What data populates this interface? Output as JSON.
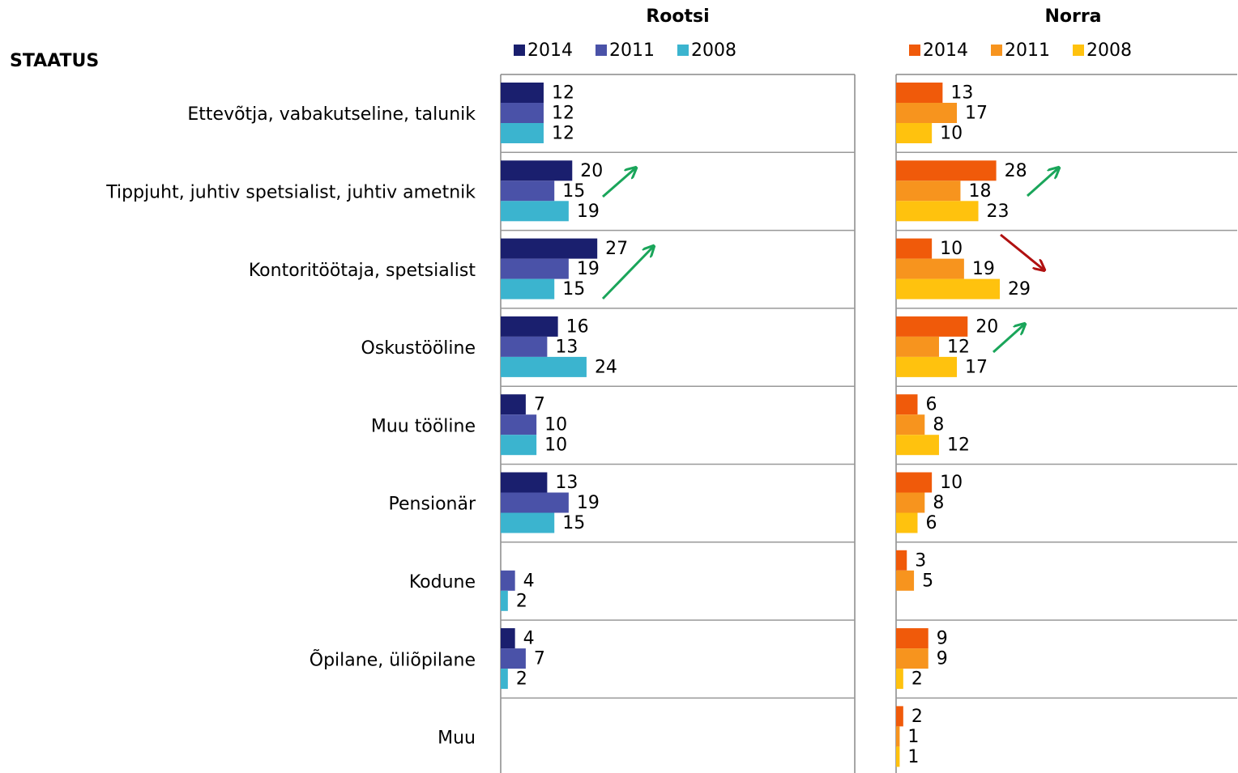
{
  "heading": "STAATUS",
  "chart_data": [
    {
      "type": "hbar",
      "title": "Rootsi",
      "categories": [
        "Ettevõtja, vabakutseline, talunik",
        "Tippjuht, juhtiv spetsialist, juhtiv ametnik",
        "Kontoritöötaja, spetsialist",
        "Oskustööline",
        "Muu tööline",
        "Pensionär",
        "Kodune",
        "Õpilane, üliõpilane",
        "Muu"
      ],
      "series": [
        {
          "name": "2014",
          "color": "#1a1f6e",
          "values": [
            12,
            20,
            27,
            16,
            7,
            13,
            null,
            4,
            null
          ]
        },
        {
          "name": "2011",
          "color": "#4a52a8",
          "values": [
            12,
            15,
            19,
            13,
            10,
            19,
            4,
            7,
            null
          ]
        },
        {
          "name": "2008",
          "color": "#3bb4cf",
          "values": [
            12,
            19,
            15,
            24,
            10,
            15,
            2,
            2,
            null
          ]
        }
      ],
      "xlim": [
        0,
        100
      ]
    },
    {
      "type": "hbar",
      "title": "Norra",
      "series": [
        {
          "name": "2014",
          "color": "#f05a0a",
          "values": [
            13,
            28,
            10,
            20,
            6,
            10,
            3,
            9,
            2
          ]
        },
        {
          "name": "2011",
          "color": "#f7941e",
          "values": [
            17,
            18,
            19,
            12,
            8,
            8,
            5,
            9,
            1
          ]
        },
        {
          "name": "2008",
          "color": "#ffc20e",
          "values": [
            10,
            23,
            29,
            17,
            12,
            6,
            null,
            2,
            1
          ]
        }
      ],
      "xlim": [
        0,
        100
      ]
    }
  ]
}
